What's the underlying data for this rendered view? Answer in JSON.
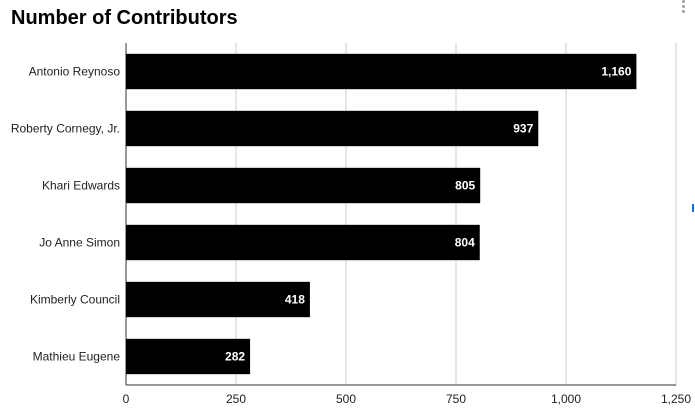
{
  "chart_data": {
    "type": "bar",
    "orientation": "horizontal",
    "title": "Number of Contributors",
    "categories": [
      "Antonio Reynoso",
      "Roberty Cornegy, Jr.",
      "Khari Edwards",
      "Jo Anne Simon",
      "Kimberly Council",
      "Mathieu Eugene"
    ],
    "values": [
      1160,
      937,
      805,
      804,
      418,
      282
    ],
    "value_labels": [
      "1,160",
      "937",
      "805",
      "804",
      "418",
      "282"
    ],
    "x_ticks": [
      0,
      250,
      500,
      750,
      1000,
      1250
    ],
    "x_tick_labels": [
      "0",
      "250",
      "500",
      "750",
      "1,000",
      "1,250"
    ],
    "xlim": [
      0,
      1250
    ],
    "xlabel": "",
    "ylabel": "",
    "grid": true,
    "bar_color": "#000000",
    "label_color": "#ffffff",
    "grid_color": "#cccccc"
  },
  "menu": {
    "icon": "more-vert-icon"
  },
  "accent": "#1a73e8"
}
